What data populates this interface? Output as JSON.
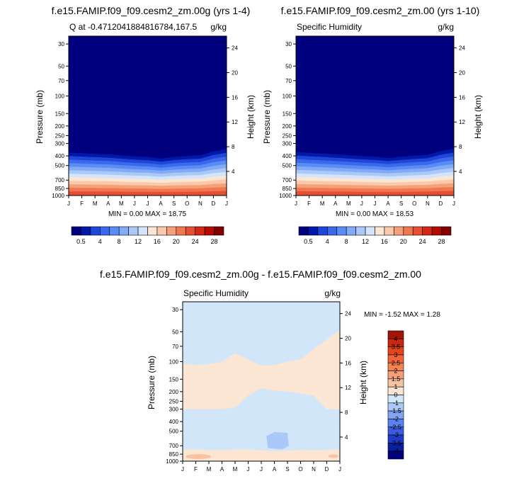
{
  "chart_data": [
    {
      "type": "heatmap",
      "title": "f.e15.FAMIP.f09_f09.cesm2_zm.00g (yrs 1-4)",
      "left_label": "Q at -0.4712041884816784,167.5",
      "right_label": "g/kg",
      "xlabel": "",
      "ylabel": "Pressure (mb)",
      "y2label": "Height (km)",
      "x_ticks": [
        "J",
        "F",
        "M",
        "A",
        "M",
        "J",
        "J",
        "A",
        "S",
        "O",
        "N",
        "D",
        "J"
      ],
      "y_ticks": [
        "30",
        "50",
        "70",
        "100",
        "150",
        "200",
        "250",
        "300",
        "400",
        "500",
        "700",
        "850",
        "1000"
      ],
      "y2_ticks": [
        "24",
        "20",
        "16",
        "12",
        "8",
        "4"
      ],
      "stats": "MIN =   0.00 MAX =  18.75",
      "colorbar": {
        "labels": [
          "0.5",
          "4",
          "8",
          "12",
          "16",
          "20",
          "24",
          "28"
        ],
        "colors": [
          "#00007f",
          "#0019a8",
          "#1e46d8",
          "#3c69eb",
          "#5a8cf5",
          "#82aaf5",
          "#aac8f8",
          "#d4e4fa",
          "#fae6d2",
          "#fac8aa",
          "#f5a078",
          "#f07850",
          "#e65032",
          "#d22814",
          "#b40a00",
          "#820000"
        ]
      },
      "moisture_profile_top_mb": [
        370,
        375,
        380,
        385,
        395,
        405,
        410,
        425,
        410,
        400,
        395,
        360,
        340
      ]
    },
    {
      "type": "heatmap",
      "title": "f.e15.FAMIP.f09_f09.cesm2_zm.00 (yrs 1-10)",
      "left_label": "Specific Humidity",
      "right_label": "g/kg",
      "xlabel": "",
      "ylabel": "Pressure (mb)",
      "y2label": "Height (km)",
      "x_ticks": [
        "J",
        "F",
        "M",
        "A",
        "M",
        "J",
        "J",
        "A",
        "S",
        "O",
        "N",
        "D",
        "J"
      ],
      "y_ticks": [
        "30",
        "50",
        "70",
        "100",
        "150",
        "200",
        "250",
        "300",
        "400",
        "500",
        "700",
        "850",
        "1000"
      ],
      "y2_ticks": [
        "24",
        "20",
        "16",
        "12",
        "8",
        "4"
      ],
      "stats": "MIN =   0.00 MAX =  18.53",
      "colorbar": {
        "labels": [
          "0.5",
          "4",
          "8",
          "12",
          "16",
          "20",
          "24",
          "28"
        ],
        "colors": [
          "#00007f",
          "#0019a8",
          "#1e46d8",
          "#3c69eb",
          "#5a8cf5",
          "#82aaf5",
          "#aac8f8",
          "#d4e4fa",
          "#fae6d2",
          "#fac8aa",
          "#f5a078",
          "#f07850",
          "#e65032",
          "#d22814",
          "#b40a00",
          "#820000"
        ]
      },
      "moisture_profile_top_mb": [
        365,
        372,
        378,
        385,
        393,
        402,
        408,
        420,
        408,
        398,
        390,
        358,
        338
      ]
    },
    {
      "type": "heatmap",
      "title": "f.e15.FAMIP.f09_f09.cesm2_zm.00g - f.e15.FAMIP.f09_f09.cesm2_zm.00",
      "left_label": "Specific Humidity",
      "right_label": "g/kg",
      "xlabel": "",
      "ylabel": "Pressure (mb)",
      "y2label": "Height (km)",
      "x_ticks": [
        "J",
        "F",
        "M",
        "A",
        "M",
        "J",
        "J",
        "A",
        "S",
        "O",
        "N",
        "D",
        "J"
      ],
      "y_ticks": [
        "30",
        "50",
        "70",
        "100",
        "150",
        "200",
        "250",
        "300",
        "400",
        "500",
        "700",
        "850",
        "1000"
      ],
      "y2_ticks": [
        "24",
        "20",
        "16",
        "12",
        "8",
        "4"
      ],
      "stats": "MIN = -1.52 MAX =   1.28",
      "colorbar": {
        "labels": [
          "4",
          "3.5",
          "3",
          "2.5",
          "2",
          "1.5",
          "1",
          "0",
          "-1",
          "-1.5",
          "-2",
          "-2.5",
          "-3",
          "-3.5",
          "-4"
        ],
        "colors": [
          "#a0140a",
          "#c8280f",
          "#e1461e",
          "#f06437",
          "#f58250",
          "#f5a078",
          "#f8c3a0",
          "#fae6d2",
          "#d2e6fa",
          "#aac8f8",
          "#82a5f5",
          "#5a82f0",
          "#3c5ae1",
          "#1e3cc8",
          "#0a1ea0",
          "#00007f"
        ]
      }
    }
  ]
}
